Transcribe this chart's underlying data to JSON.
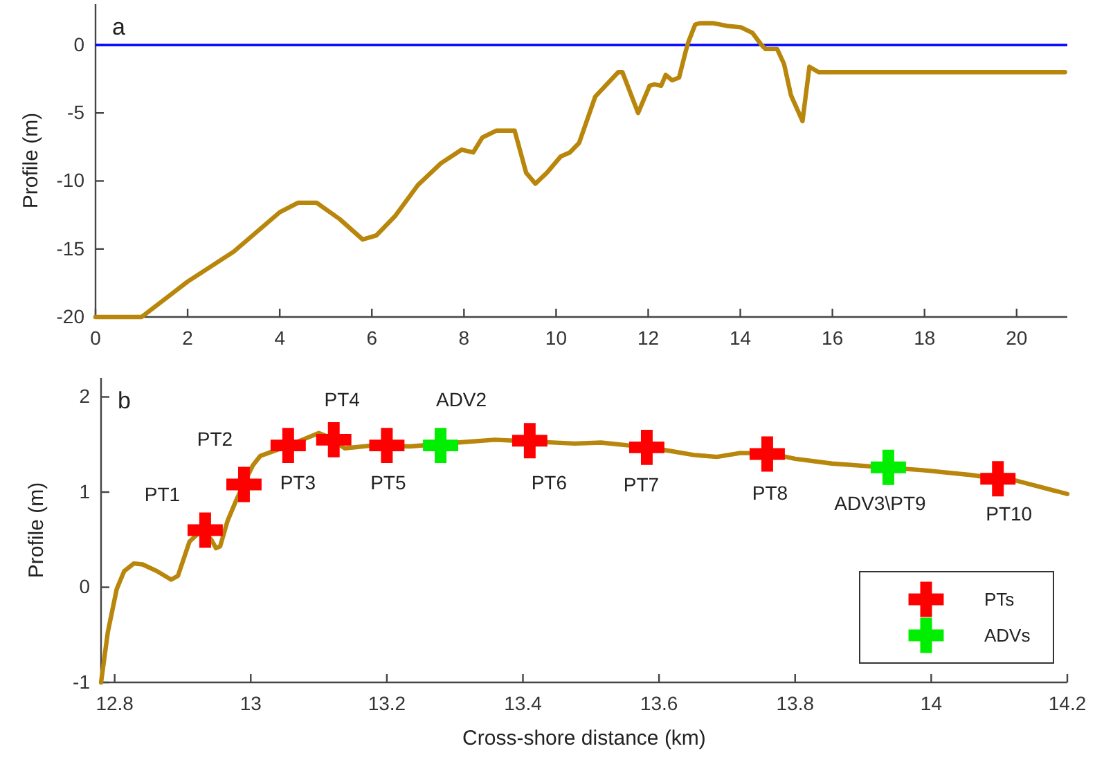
{
  "chart_data": [
    {
      "type": "line",
      "ylabel": "Profile (m)",
      "xlim": [
        0,
        21.1
      ],
      "ylim": [
        -20,
        3
      ],
      "xticks": [
        0,
        2,
        4,
        6,
        8,
        10,
        12,
        14,
        16,
        18,
        20
      ],
      "yticks": [
        -20,
        -15,
        -10,
        -5,
        0
      ],
      "grid": false,
      "legend": false,
      "line_style": "solid",
      "ref_lines": [
        {
          "axis": "y",
          "value": 0,
          "color": "#0000ff"
        }
      ],
      "annotations": [
        "a"
      ],
      "series": [
        {
          "color": "#b8860b",
          "x": [
            0,
            1,
            2,
            3,
            4,
            4.4,
            4.8,
            5.3,
            5.8,
            6.1,
            6.5,
            7,
            7.5,
            7.95,
            8.2,
            8.4,
            8.7,
            9.1,
            9.35,
            9.55,
            9.8,
            10.1,
            10.3,
            10.5,
            10.85,
            11.35,
            11.44,
            11.78,
            12.03,
            12.13,
            12.28,
            12.38,
            12.52,
            12.67,
            12.82,
            12.87,
            13.02,
            13.12,
            13.42,
            13.71,
            14.01,
            14.26,
            14.46,
            14.55,
            14.8,
            14.95,
            15.1,
            15.35,
            15.5,
            15.7,
            21.05
          ],
          "values": [
            -20,
            -20,
            -17.4,
            -15.2,
            -12.3,
            -11.6,
            -11.6,
            -12.8,
            -14.3,
            -14,
            -12.6,
            -10.3,
            -8.7,
            -7.7,
            -7.9,
            -6.8,
            -6.3,
            -6.3,
            -9.4,
            -10.2,
            -9.4,
            -8.2,
            -7.9,
            -7.2,
            -3.8,
            -2,
            -2,
            -5,
            -3,
            -2.9,
            -3,
            -2.2,
            -2.6,
            -2.4,
            -0.4,
            0.2,
            1.5,
            1.6,
            1.6,
            1.4,
            1.3,
            0.9,
            0,
            -0.3,
            -0.3,
            -1.4,
            -3.7,
            -5.6,
            -1.6,
            -2,
            -2
          ]
        }
      ]
    },
    {
      "type": "line",
      "xlabel": "Cross-shore distance (km)",
      "ylabel": "Profile (m)",
      "xlim": [
        12.78,
        14.2
      ],
      "ylim": [
        -1,
        2.2
      ],
      "xticks": [
        12.8,
        13,
        13.2,
        13.4,
        13.6,
        13.8,
        14,
        14.2
      ],
      "yticks": [
        -1,
        0,
        1,
        2
      ],
      "grid": false,
      "legend": "bottom right",
      "line_style": "solid",
      "annotations": [
        "b",
        {
          "text": "PT1",
          "x": 12.933,
          "y": 0.6
        },
        {
          "text": "PT2",
          "x": 12.99,
          "y": 1.08
        },
        {
          "text": "PT3",
          "x": 13.055,
          "y": 1.49
        },
        {
          "text": "PT4",
          "x": 13.122,
          "y": 1.55
        },
        {
          "text": "PT5",
          "x": 13.2,
          "y": 1.49
        },
        {
          "text": "ADV2",
          "x": 13.279,
          "y": 1.49
        },
        {
          "text": "PT6",
          "x": 13.41,
          "y": 1.54
        },
        {
          "text": "PT7",
          "x": 13.582,
          "y": 1.47
        },
        {
          "text": "PT8",
          "x": 13.759,
          "y": 1.4
        },
        {
          "text": "ADV3\\PT9",
          "x": 13.937,
          "y": 1.26
        },
        {
          "text": "PT10",
          "x": 14.098,
          "y": 1.14
        }
      ],
      "series": [
        {
          "color": "#b8860b",
          "x": [
            12.78,
            12.79,
            12.803,
            12.814,
            12.828,
            12.841,
            12.862,
            12.883,
            12.893,
            12.91,
            12.928,
            12.942,
            12.949,
            12.955,
            12.966,
            12.979,
            12.99,
            13.003,
            13.014,
            13.041,
            13.076,
            13.1,
            13.114,
            13.138,
            13.179,
            13.234,
            13.303,
            13.359,
            13.476,
            13.515,
            13.556,
            13.61,
            13.651,
            13.685,
            13.719,
            13.759,
            13.8,
            13.854,
            13.988,
            14.058,
            14.098,
            14.125,
            14.2
          ],
          "values": [
            -1,
            -0.47,
            -0.02,
            0.17,
            0.25,
            0.24,
            0.17,
            0.08,
            0.12,
            0.48,
            0.6,
            0.5,
            0.41,
            0.43,
            0.7,
            0.92,
            1.09,
            1.28,
            1.38,
            1.45,
            1.55,
            1.62,
            1.58,
            1.46,
            1.49,
            1.48,
            1.52,
            1.55,
            1.51,
            1.52,
            1.49,
            1.44,
            1.39,
            1.37,
            1.41,
            1.41,
            1.35,
            1.3,
            1.23,
            1.18,
            1.14,
            1.12,
            0.98
          ]
        },
        {
          "type": "scatter",
          "name": "PTs",
          "color": "#ff0000",
          "marker": "cross",
          "x": [
            12.933,
            12.99,
            13.055,
            13.122,
            13.2,
            13.41,
            13.582,
            13.759,
            14.098
          ],
          "values": [
            0.6,
            1.08,
            1.49,
            1.55,
            1.49,
            1.54,
            1.47,
            1.4,
            1.14
          ]
        },
        {
          "type": "scatter",
          "name": "ADVs",
          "color": "#00ee00",
          "marker": "cross",
          "x": [
            13.279,
            13.937
          ],
          "values": [
            1.49,
            1.26
          ]
        }
      ]
    }
  ]
}
